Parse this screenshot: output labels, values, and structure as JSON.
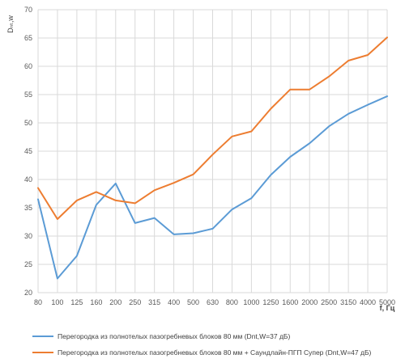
{
  "chart_data": {
    "type": "line",
    "ylabel": "Dₙₜ,w",
    "xlabel": "f, Гц",
    "ylim": [
      20,
      70
    ],
    "ytick_step": 5,
    "grid": true,
    "legend_position": "bottom",
    "categories": [
      "80",
      "100",
      "125",
      "160",
      "200",
      "250",
      "315",
      "400",
      "500",
      "630",
      "800",
      "1000",
      "1250",
      "1600",
      "2000",
      "2500",
      "3150",
      "4000",
      "5000"
    ],
    "series": [
      {
        "name": "Перегородка из полнотелых пазогребневых блоков 80 мм (Dnt,W=37 дБ)",
        "color": "#5b9bd5",
        "values": [
          36.5,
          22.5,
          26.5,
          35.5,
          39.3,
          32.3,
          33.2,
          30.3,
          30.5,
          31.3,
          34.7,
          36.7,
          40.8,
          44.0,
          46.4,
          49.4,
          51.6,
          53.2,
          54.7
        ]
      },
      {
        "name": "Перегородка из полнотелых пазогребневых блоков 80 мм + Саундлайн-ПГП Супер (Dnt,W=47 дБ)",
        "color": "#ed7d31",
        "values": [
          38.5,
          33.0,
          36.3,
          37.8,
          36.3,
          35.8,
          38.1,
          39.4,
          40.9,
          44.4,
          47.6,
          48.5,
          52.5,
          55.9,
          55.9,
          58.2,
          61.0,
          62.0,
          65.1
        ]
      }
    ]
  }
}
